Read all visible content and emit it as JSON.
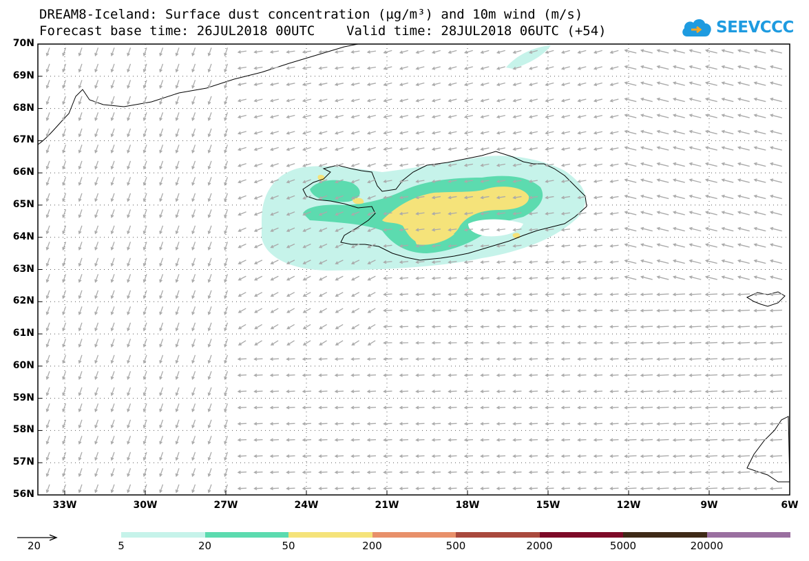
{
  "title": {
    "line1": "DREAM8-Iceland: Surface dust concentration (µg/m³) and 10m wind (m/s)",
    "line2": "Forecast base time: 26JUL2018 00UTC    Valid time: 28JUL2018 06UTC (+54)"
  },
  "logo": {
    "text": "SEEVCCC",
    "color": "#1e9be0"
  },
  "lat_labels": [
    "70N",
    "69N",
    "68N",
    "67N",
    "66N",
    "65N",
    "64N",
    "63N",
    "62N",
    "61N",
    "60N",
    "59N",
    "58N",
    "57N",
    "56N"
  ],
  "lon_labels": [
    "33W",
    "30W",
    "27W",
    "24W",
    "21W",
    "18W",
    "15W",
    "12W",
    "9W",
    "6W"
  ],
  "map_extent": {
    "lon_min": -34,
    "lon_max": -6,
    "lat_min": 56,
    "lat_max": 70
  },
  "wind_reference": {
    "label": "20",
    "unit": "m/s"
  },
  "legend": {
    "colors": [
      "#c6f3ea",
      "#5cdbaf",
      "#f5e37a",
      "#e8906a",
      "#a9493d",
      "#7d0a28",
      "#3e2a17",
      "#9a6fa0"
    ],
    "labels": [
      "5",
      "20",
      "50",
      "200",
      "500",
      "2000",
      "5000",
      "20000"
    ]
  },
  "colors": {
    "wind_arrow": "#aaaaaa",
    "coast": "#000000",
    "grid": "#555555"
  }
}
